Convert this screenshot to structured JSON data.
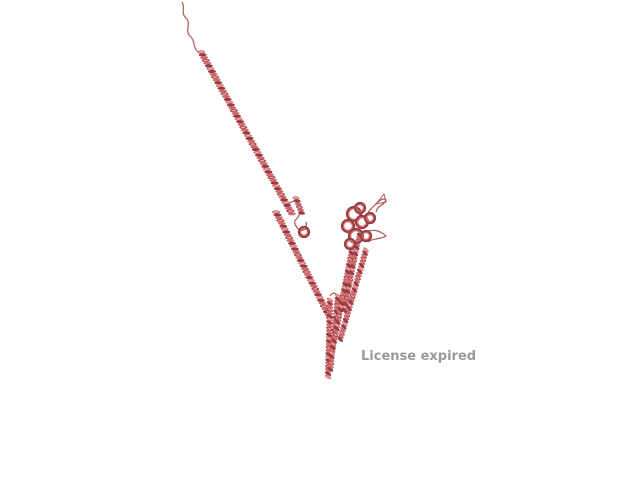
{
  "viewer": {
    "watermark_text": "License expired"
  },
  "structure": {
    "representation": "cartoon",
    "colors": {
      "ribbon": "#d9686b",
      "ribbon_shadow": "#8e3f43",
      "ribbon_highlight": "#f0a2a4",
      "coil": "#b0565a",
      "background": "#ffffff",
      "watermark": "#9a9a9a"
    }
  }
}
